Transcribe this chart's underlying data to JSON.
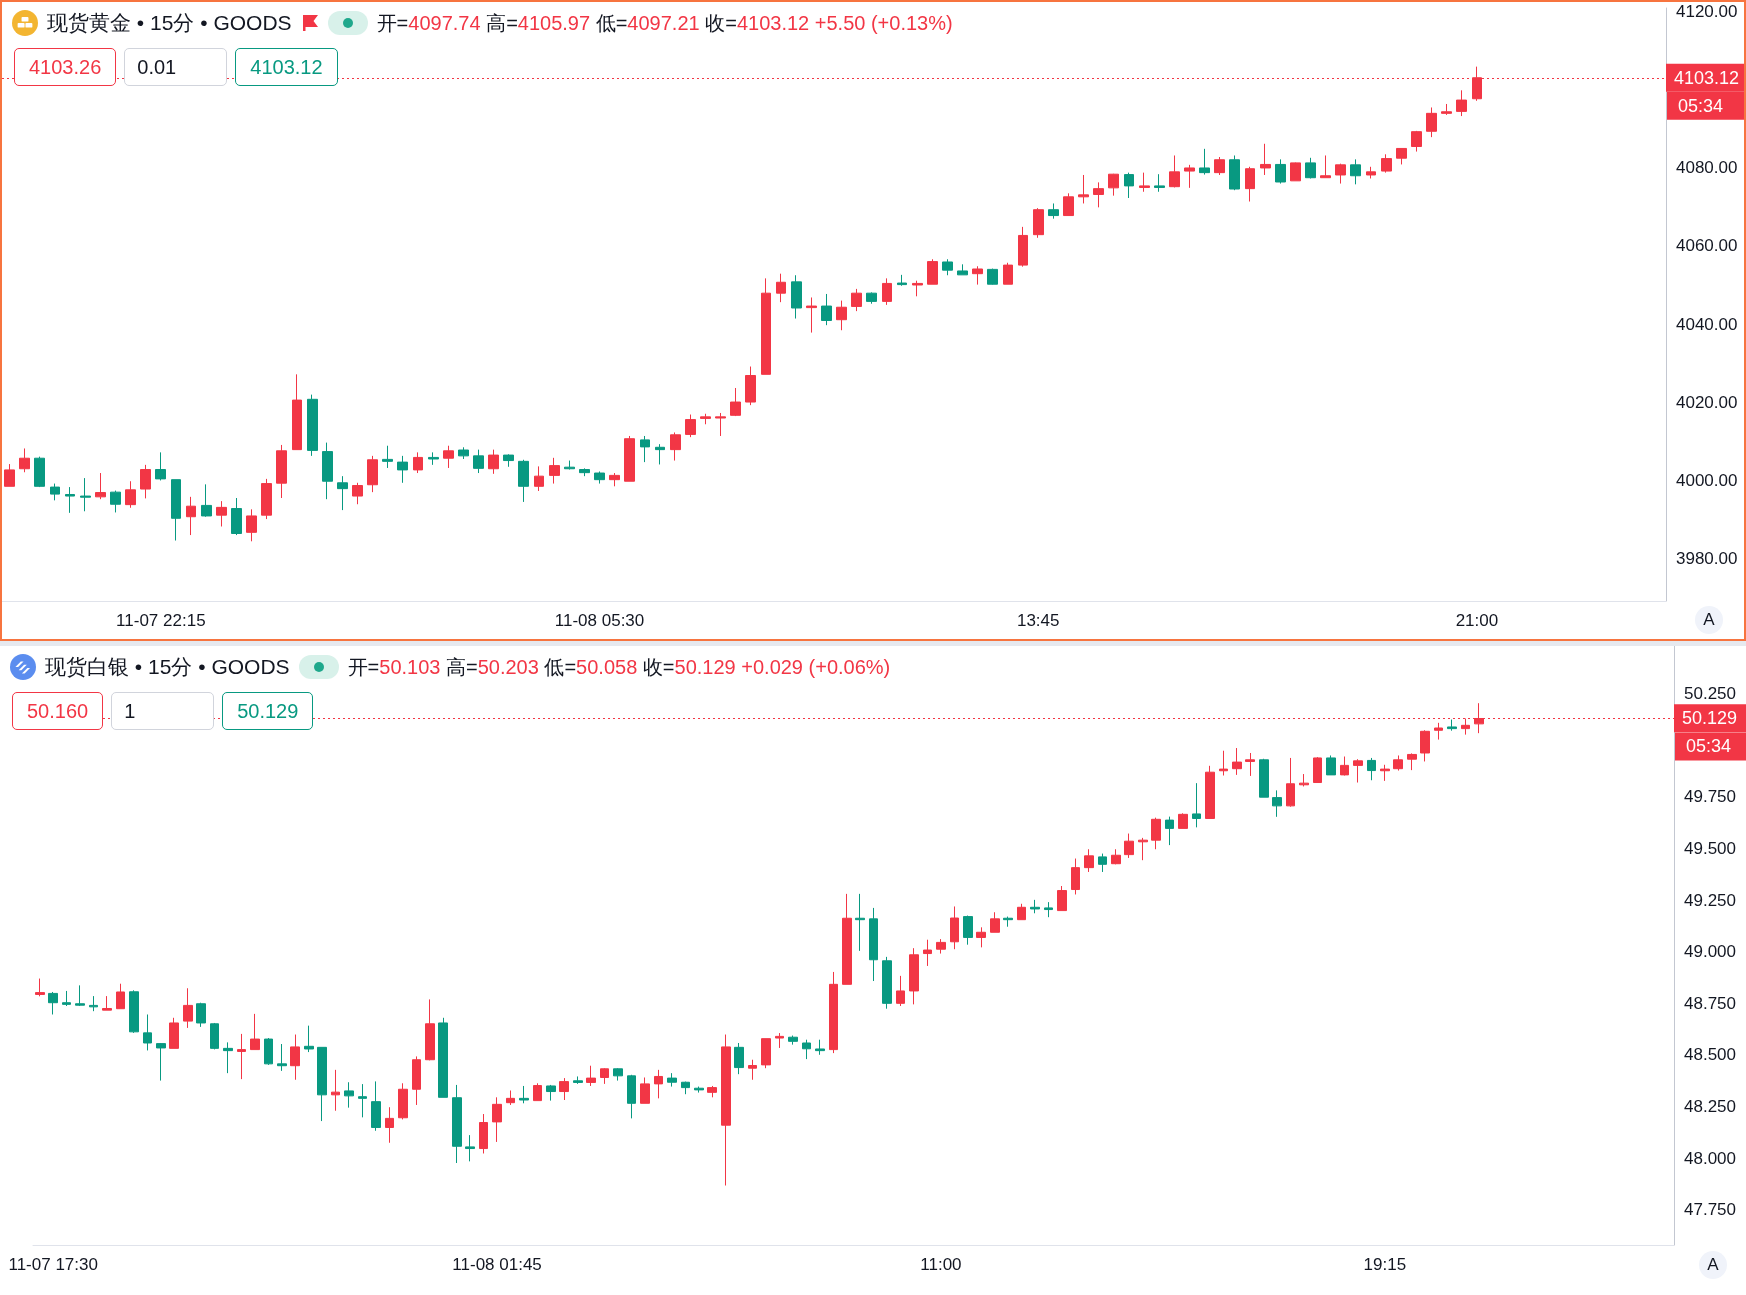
{
  "chart_data": [
    {
      "type": "candlestick",
      "title": "现货黄金 • 15分 • GOODS",
      "subtitle": "开=4097.74 高=4105.97 低=4097.21 收=4103.12 +5.50 (+0.13%)",
      "categories": [
        null,
        null,
        null,
        null,
        null,
        null,
        null,
        null,
        null,
        null,
        "11-07 22:15",
        null,
        null,
        null,
        null,
        null,
        null,
        null,
        null,
        null,
        null,
        null,
        null,
        null,
        null,
        null,
        null,
        null,
        null,
        null,
        null,
        null,
        null,
        null,
        null,
        null,
        null,
        null,
        null,
        "11-08 05:30",
        null,
        null,
        null,
        null,
        null,
        null,
        null,
        null,
        null,
        null,
        null,
        null,
        null,
        null,
        null,
        null,
        null,
        null,
        null,
        null,
        null,
        null,
        null,
        null,
        null,
        null,
        null,
        null,
        "13:45",
        null,
        null,
        null,
        null,
        null,
        null,
        null,
        null,
        null,
        null,
        null,
        null,
        null,
        null,
        null,
        null,
        null,
        null,
        null,
        null,
        null,
        null,
        null,
        null,
        null,
        null,
        null,
        null,
        "21:00",
        null,
        null,
        null,
        null,
        null,
        null,
        null,
        null,
        null,
        null,
        null,
        null
      ],
      "ohlc": [
        [
          3998.4,
          4004.1,
          3998.4,
          4002.6
        ],
        [
          4002.9,
          4008.1,
          4002.0,
          4005.6
        ],
        [
          4005.6,
          4006.0,
          3998.2,
          3998.4
        ],
        [
          3998.2,
          3999.1,
          3994.8,
          3996.4
        ],
        [
          3996.3,
          3998.2,
          3991.6,
          3995.9
        ],
        [
          3995.9,
          4000.5,
          3992.0,
          3995.6
        ],
        [
          3995.7,
          4001.8,
          3995.1,
          3996.8
        ],
        [
          3996.9,
          3997.3,
          3991.7,
          3993.8
        ],
        [
          3993.7,
          3999.7,
          3992.9,
          3997.5
        ],
        [
          3997.7,
          4003.9,
          3995.3,
          4002.7
        ],
        [
          4002.7,
          4007.1,
          3999.9,
          4000.3
        ],
        [
          4000.1,
          4000.1,
          3984.5,
          3990.2
        ],
        [
          3990.6,
          3995.7,
          3985.9,
          3993.3
        ],
        [
          3993.5,
          3998.9,
          3990.6,
          3990.8
        ],
        [
          3991.0,
          3994.6,
          3988.1,
          3993.0
        ],
        [
          3992.7,
          3995.4,
          3985.9,
          3986.3
        ],
        [
          3986.6,
          3992.5,
          3984.3,
          3990.8
        ],
        [
          3991.0,
          4000.3,
          3990.0,
          3999.1
        ],
        [
          3999.2,
          4009.0,
          3995.4,
          4007.5
        ],
        [
          4007.8,
          4027.1,
          4007.8,
          4020.5
        ],
        [
          4020.7,
          4021.9,
          4006.2,
          4007.6
        ],
        [
          4007.3,
          4009.6,
          3995.1,
          3999.7
        ],
        [
          3999.3,
          4001.0,
          3992.3,
          3997.8
        ],
        [
          3995.9,
          3999.3,
          3993.8,
          3998.6
        ],
        [
          3998.8,
          4006.2,
          3996.9,
          4005.2
        ],
        [
          4005.3,
          4008.8,
          4003.1,
          4004.8
        ],
        [
          4004.6,
          4006.2,
          3999.3,
          4002.6
        ],
        [
          4002.6,
          4007.1,
          4001.8,
          4005.8
        ],
        [
          4005.8,
          4007.1,
          4003.9,
          4005.4
        ],
        [
          4005.6,
          4008.8,
          4003.1,
          4007.5
        ],
        [
          4007.7,
          4008.4,
          4005.4,
          4006.2
        ],
        [
          4006.2,
          4007.8,
          4001.8,
          4003.0
        ],
        [
          4002.9,
          4007.8,
          4001.6,
          4006.4
        ],
        [
          4006.4,
          4006.6,
          4003.4,
          4005.0
        ],
        [
          4004.8,
          4005.2,
          3994.4,
          3998.4
        ],
        [
          3998.4,
          4003.5,
          3997.2,
          4001.0
        ],
        [
          4001.2,
          4005.7,
          3999.1,
          4003.7
        ],
        [
          4003.3,
          4005.0,
          4002.7,
          4002.9
        ],
        [
          4002.7,
          4003.0,
          4001.0,
          4001.9
        ],
        [
          4001.8,
          4002.2,
          3999.1,
          4000.1
        ],
        [
          4000.1,
          4001.8,
          3998.4,
          4001.2
        ],
        [
          3999.7,
          4011.3,
          3999.7,
          4010.6
        ],
        [
          4010.3,
          4011.3,
          4004.6,
          4008.5
        ],
        [
          4008.4,
          4009.2,
          4004.0,
          4007.8
        ],
        [
          4007.8,
          4012.2,
          4005.0,
          4011.6
        ],
        [
          4011.7,
          4016.8,
          4011.0,
          4015.5
        ],
        [
          4015.8,
          4017.0,
          4014.3,
          4016.2
        ],
        [
          4015.9,
          4017.2,
          4011.3,
          4016.2
        ],
        [
          4016.6,
          4023.6,
          4016.4,
          4020.0
        ],
        [
          4020.0,
          4029.1,
          4019.2,
          4026.8
        ],
        [
          4027.1,
          4051.7,
          4027.1,
          4047.9
        ],
        [
          4047.9,
          4052.9,
          4045.6,
          4050.7
        ],
        [
          4050.8,
          4052.5,
          4041.4,
          4044.1
        ],
        [
          4044.2,
          4046.8,
          4037.8,
          4044.6
        ],
        [
          4044.6,
          4047.7,
          4039.7,
          4040.9
        ],
        [
          4041.1,
          4046.0,
          4038.4,
          4044.3
        ],
        [
          4044.5,
          4049.0,
          4043.3,
          4047.9
        ],
        [
          4047.9,
          4048.1,
          4045.2,
          4045.8
        ],
        [
          4045.8,
          4051.7,
          4044.9,
          4050.4
        ],
        [
          4050.5,
          4052.6,
          4049.8,
          4050.1
        ],
        [
          4050.0,
          4051.1,
          4047.1,
          4050.4
        ],
        [
          4050.2,
          4056.6,
          4050.2,
          4056.0
        ],
        [
          4055.9,
          4056.6,
          4052.5,
          4053.8
        ],
        [
          4053.6,
          4055.3,
          4052.6,
          4052.6
        ],
        [
          4052.9,
          4054.8,
          4050.1,
          4054.1
        ],
        [
          4054.0,
          4054.2,
          4050.1,
          4050.2
        ],
        [
          4050.2,
          4055.7,
          4050.2,
          4055.1
        ],
        [
          4055.1,
          4064.9,
          4054.7,
          4062.7
        ],
        [
          4062.9,
          4069.7,
          4062.1,
          4069.3
        ],
        [
          4069.3,
          4070.9,
          4067.0,
          4067.8
        ],
        [
          4067.8,
          4073.5,
          4067.8,
          4072.6
        ],
        [
          4072.6,
          4078.2,
          4070.9,
          4073.1
        ],
        [
          4073.2,
          4076.3,
          4069.9,
          4074.7
        ],
        [
          4074.9,
          4078.5,
          4072.9,
          4078.4
        ],
        [
          4078.3,
          4078.8,
          4072.3,
          4075.4
        ],
        [
          4075.0,
          4078.8,
          4073.9,
          4075.4
        ],
        [
          4075.4,
          4078.4,
          4073.9,
          4075.0
        ],
        [
          4075.2,
          4083.2,
          4075.0,
          4079.0
        ],
        [
          4079.2,
          4080.8,
          4074.9,
          4080.0
        ],
        [
          4080.0,
          4084.9,
          4078.3,
          4078.8
        ],
        [
          4078.8,
          4082.8,
          4078.2,
          4082.1
        ],
        [
          4082.1,
          4083.2,
          4074.3,
          4074.6
        ],
        [
          4074.7,
          4080.3,
          4071.4,
          4079.8
        ],
        [
          4080.0,
          4086.2,
          4078.2,
          4080.9
        ],
        [
          4080.9,
          4082.2,
          4076.0,
          4076.4
        ],
        [
          4076.7,
          4081.4,
          4076.7,
          4081.3
        ],
        [
          4081.3,
          4082.6,
          4077.3,
          4077.5
        ],
        [
          4077.5,
          4083.2,
          4077.5,
          4078.0
        ],
        [
          4078.2,
          4081.1,
          4076.0,
          4080.8
        ],
        [
          4080.8,
          4082.2,
          4075.8,
          4078.0
        ],
        [
          4078.2,
          4080.3,
          4077.3,
          4079.0
        ],
        [
          4079.2,
          4083.5,
          4078.8,
          4082.4
        ],
        [
          4082.5,
          4085.0,
          4080.9,
          4085.0
        ],
        [
          4085.5,
          4089.5,
          4084.2,
          4089.3
        ],
        [
          4089.4,
          4095.5,
          4087.9,
          4094.0
        ],
        [
          4094.0,
          4096.4,
          4093.6,
          4094.4
        ],
        [
          4094.5,
          4099.9,
          4093.3,
          4097.4
        ],
        [
          4097.74,
          4105.97,
          4097.21,
          4103.12
        ],
        null,
        null,
        null,
        null,
        null,
        null,
        null,
        null,
        null,
        null,
        null,
        null
      ],
      "colors": [
        "#f23645",
        "#f23645",
        "#089981",
        "#089981",
        "#089981",
        "#089981",
        "#f23645",
        "#089981",
        "#f23645",
        "#f23645",
        "#089981",
        "#089981",
        "#f23645",
        "#089981",
        "#f23645",
        "#089981",
        "#f23645",
        "#f23645",
        "#f23645",
        "#f23645",
        "#089981",
        "#089981",
        "#089981",
        "#f23645",
        "#f23645",
        "#089981",
        "#089981",
        "#f23645",
        "#089981",
        "#f23645",
        "#089981",
        "#089981",
        "#f23645",
        "#089981",
        "#089981",
        "#f23645",
        "#f23645",
        "#089981",
        "#089981",
        "#089981",
        "#f23645",
        "#f23645",
        "#089981",
        "#089981",
        "#f23645",
        "#f23645",
        "#f23645",
        "#f23645",
        "#f23645",
        "#f23645",
        "#f23645",
        "#f23645",
        "#089981",
        "#f23645",
        "#089981",
        "#f23645",
        "#f23645",
        "#089981",
        "#f23645",
        "#089981",
        "#f23645",
        "#f23645",
        "#089981",
        "#089981",
        "#f23645",
        "#089981",
        "#f23645",
        "#f23645",
        "#f23645",
        "#089981",
        "#f23645",
        "#f23645",
        "#f23645",
        "#f23645",
        "#089981",
        "#f23645",
        "#089981",
        "#f23645",
        "#f23645",
        "#089981",
        "#f23645",
        "#089981",
        "#f23645",
        "#f23645",
        "#089981",
        "#f23645",
        "#089981",
        "#f23645",
        "#f23645",
        "#089981",
        "#f23645",
        "#f23645",
        "#f23645",
        "#f23645",
        "#f23645",
        "#f23645",
        "#f23645",
        "#f23645",
        null,
        null,
        null,
        null,
        null,
        null,
        null,
        null,
        null,
        null,
        null,
        null
      ],
      "ylim": [
        3969,
        4121
      ],
      "yticks": [
        {
          "value": 3980,
          "label": "3980.00"
        },
        {
          "value": 4000,
          "label": "4000.00"
        },
        {
          "value": 4020,
          "label": "4020.00"
        },
        {
          "value": 4040,
          "label": "4040.00"
        },
        {
          "value": 4060,
          "label": "4060.00"
        },
        {
          "value": 4080,
          "label": "4080.00"
        },
        {
          "value": 4120,
          "label": "4120.00"
        }
      ],
      "ref_lines": [
        {
          "axis": "y",
          "value": 4103.12,
          "label": "4103.12",
          "color": "#f23645",
          "line_style": "dotted"
        }
      ],
      "annotations": [
        "4103.26",
        "0.01",
        "4103.12",
        "05:34",
        "A"
      ]
    },
    {
      "type": "candlestick",
      "title": "现货白银 • 15分 • GOODS",
      "subtitle": "开=50.103 高=50.203 低=50.058 收=50.129 +0.029 (+0.06%)",
      "categories": [
        null,
        "11-07 17:30",
        null,
        null,
        null,
        null,
        null,
        null,
        null,
        null,
        null,
        null,
        null,
        null,
        null,
        null,
        null,
        null,
        null,
        null,
        null,
        null,
        null,
        null,
        null,
        null,
        null,
        null,
        null,
        null,
        null,
        null,
        null,
        null,
        "11-08 01:45",
        null,
        null,
        null,
        null,
        null,
        null,
        null,
        null,
        null,
        null,
        null,
        null,
        null,
        null,
        null,
        null,
        null,
        null,
        null,
        null,
        null,
        null,
        null,
        null,
        null,
        null,
        null,
        null,
        null,
        null,
        null,
        null,
        "11:00",
        null,
        null,
        null,
        null,
        null,
        null,
        null,
        null,
        null,
        null,
        null,
        null,
        null,
        null,
        null,
        null,
        null,
        null,
        null,
        null,
        null,
        null,
        null,
        null,
        null,
        null,
        null,
        null,
        null,
        null,
        null,
        null,
        "19:15",
        null,
        null,
        null,
        null,
        null,
        null,
        null,
        null,
        null,
        null,
        null,
        null,
        null,
        null,
        null,
        null,
        null,
        null,
        null,
        null,
        null
      ],
      "ohlc": [
        [
          48.793,
          48.87,
          48.784,
          48.802
        ],
        [
          48.798,
          48.805,
          48.696,
          48.753
        ],
        [
          48.753,
          48.81,
          48.737,
          48.745
        ],
        [
          48.748,
          48.837,
          48.737,
          48.741
        ],
        [
          48.74,
          48.785,
          48.712,
          48.733
        ],
        [
          48.717,
          48.785,
          48.717,
          48.725
        ],
        [
          48.724,
          48.845,
          48.724,
          48.805
        ],
        [
          48.806,
          48.813,
          48.607,
          48.612
        ],
        [
          48.607,
          48.696,
          48.522,
          48.558
        ],
        [
          48.555,
          48.558,
          48.376,
          48.534
        ],
        [
          48.532,
          48.68,
          48.532,
          48.655
        ],
        [
          48.664,
          48.823,
          48.631,
          48.74
        ],
        [
          48.748,
          48.753,
          48.636,
          48.655
        ],
        [
          48.651,
          48.655,
          48.527,
          48.532
        ],
        [
          48.532,
          48.561,
          48.412,
          48.521
        ],
        [
          48.517,
          48.602,
          48.383,
          48.526
        ],
        [
          48.526,
          48.699,
          48.526,
          48.577
        ],
        [
          48.577,
          48.582,
          48.452,
          48.457
        ],
        [
          48.457,
          48.553,
          48.423,
          48.448
        ],
        [
          48.448,
          48.599,
          48.38,
          48.539
        ],
        [
          48.542,
          48.642,
          48.514,
          48.529
        ],
        [
          48.537,
          48.537,
          48.18,
          48.307
        ],
        [
          48.307,
          48.428,
          48.23,
          48.32
        ],
        [
          48.326,
          48.368,
          48.245,
          48.302
        ],
        [
          48.298,
          48.359,
          48.198,
          48.29
        ],
        [
          48.274,
          48.372,
          48.133,
          48.149
        ],
        [
          48.149,
          48.247,
          48.075,
          48.193
        ],
        [
          48.196,
          48.363,
          48.188,
          48.334
        ],
        [
          48.334,
          48.493,
          48.258,
          48.477
        ],
        [
          48.477,
          48.769,
          48.474,
          48.651
        ],
        [
          48.655,
          48.68,
          48.295,
          48.295
        ],
        [
          48.293,
          48.355,
          47.977,
          48.058
        ],
        [
          48.055,
          48.112,
          47.985,
          48.047
        ],
        [
          48.047,
          48.214,
          48.023,
          48.173
        ],
        [
          48.176,
          48.295,
          48.079,
          48.261
        ],
        [
          48.269,
          48.328,
          48.258,
          48.29
        ],
        [
          48.29,
          48.35,
          48.266,
          48.282
        ],
        [
          48.279,
          48.363,
          48.279,
          48.352
        ],
        [
          48.35,
          48.355,
          48.279,
          48.323
        ],
        [
          48.323,
          48.388,
          48.282,
          48.371
        ],
        [
          48.375,
          48.396,
          48.36,
          48.367
        ],
        [
          48.367,
          48.448,
          48.35,
          48.388
        ],
        [
          48.391,
          48.436,
          48.36,
          48.433
        ],
        [
          48.433,
          48.436,
          48.376,
          48.399
        ],
        [
          48.399,
          48.404,
          48.193,
          48.266
        ],
        [
          48.266,
          48.391,
          48.266,
          48.36
        ],
        [
          48.36,
          48.428,
          48.29,
          48.396
        ],
        [
          48.388,
          48.412,
          48.347,
          48.368
        ],
        [
          48.368,
          48.371,
          48.31,
          48.342
        ],
        [
          48.339,
          48.347,
          48.318,
          48.331
        ],
        [
          48.319,
          48.35,
          48.295,
          48.342
        ],
        [
          48.16,
          48.599,
          47.868,
          48.539
        ],
        [
          48.537,
          48.558,
          48.407,
          48.439
        ],
        [
          48.436,
          48.477,
          48.38,
          48.449
        ],
        [
          48.452,
          48.579,
          48.436,
          48.579
        ],
        [
          48.582,
          48.606,
          48.534,
          48.59
        ],
        [
          48.586,
          48.594,
          48.55,
          48.566
        ],
        [
          48.558,
          48.574,
          48.48,
          48.53
        ],
        [
          48.529,
          48.574,
          48.501,
          48.521
        ],
        [
          48.526,
          48.902,
          48.509,
          48.842
        ],
        [
          48.842,
          49.28,
          48.842,
          49.162
        ],
        [
          49.162,
          49.28,
          49.004,
          49.155
        ],
        [
          49.159,
          49.212,
          48.858,
          48.961
        ],
        [
          48.956,
          48.975,
          48.724,
          48.75
        ],
        [
          48.75,
          48.883,
          48.737,
          48.81
        ],
        [
          48.81,
          49.017,
          48.745,
          48.985
        ],
        [
          48.991,
          49.058,
          48.931,
          49.008
        ],
        [
          49.012,
          49.061,
          48.991,
          49.045
        ],
        [
          49.048,
          49.219,
          49.012,
          49.163
        ],
        [
          49.17,
          49.175,
          49.034,
          49.069
        ],
        [
          49.069,
          49.118,
          49.021,
          49.094
        ],
        [
          49.094,
          49.191,
          49.094,
          49.159
        ],
        [
          49.162,
          49.17,
          49.121,
          49.155
        ],
        [
          49.155,
          49.232,
          49.155,
          49.215
        ],
        [
          49.215,
          49.251,
          49.186,
          49.207
        ],
        [
          49.212,
          49.24,
          49.167,
          49.204
        ],
        [
          49.199,
          49.318,
          49.199,
          49.296
        ],
        [
          49.301,
          49.451,
          49.277,
          49.407
        ],
        [
          49.407,
          49.496,
          49.386,
          49.464
        ],
        [
          49.459,
          49.475,
          49.386,
          49.423
        ],
        [
          49.426,
          49.496,
          49.423,
          49.467
        ],
        [
          49.47,
          49.572,
          49.454,
          49.535
        ],
        [
          49.532,
          49.551,
          49.443,
          49.54
        ],
        [
          49.54,
          49.649,
          49.496,
          49.641
        ],
        [
          49.637,
          49.654,
          49.516,
          49.597
        ],
        [
          49.597,
          49.67,
          49.597,
          49.665
        ],
        [
          49.667,
          49.816,
          49.602,
          49.645
        ],
        [
          49.645,
          49.9,
          49.645,
          49.869
        ],
        [
          49.876,
          49.973,
          49.853,
          49.884
        ],
        [
          49.886,
          49.986,
          49.856,
          49.918
        ],
        [
          49.921,
          49.962,
          49.851,
          49.929
        ],
        [
          49.929,
          49.934,
          49.748,
          49.748
        ],
        [
          49.746,
          49.781,
          49.653,
          49.706
        ],
        [
          49.706,
          49.938,
          49.702,
          49.813
        ],
        [
          49.808,
          49.86,
          49.8,
          49.816
        ],
        [
          49.819,
          49.942,
          49.819,
          49.938
        ],
        [
          49.938,
          49.95,
          49.856,
          49.856
        ],
        [
          49.856,
          49.945,
          49.853,
          49.902
        ],
        [
          49.902,
          49.932,
          49.819,
          49.924
        ],
        [
          49.926,
          49.938,
          49.83,
          49.877
        ],
        [
          49.876,
          49.905,
          49.827,
          49.884
        ],
        [
          49.886,
          49.95,
          49.877,
          49.929
        ],
        [
          49.932,
          49.96,
          49.879,
          49.955
        ],
        [
          49.962,
          50.072,
          49.921,
          50.067
        ],
        [
          50.072,
          50.108,
          50.027,
          50.083
        ],
        [
          50.088,
          50.124,
          50.07,
          50.08
        ],
        [
          50.08,
          50.129,
          50.051,
          50.096
        ],
        [
          50.103,
          50.203,
          50.058,
          50.129
        ],
        null,
        null,
        null,
        null,
        null,
        null,
        null,
        null,
        null,
        null,
        null,
        null,
        null,
        null
      ],
      "colors": [
        "#f23645",
        "#089981",
        "#089981",
        "#089981",
        "#089981",
        "#f23645",
        "#f23645",
        "#089981",
        "#089981",
        "#089981",
        "#f23645",
        "#f23645",
        "#089981",
        "#089981",
        "#089981",
        "#f23645",
        "#f23645",
        "#089981",
        "#089981",
        "#f23645",
        "#089981",
        "#089981",
        "#f23645",
        "#089981",
        "#089981",
        "#089981",
        "#f23645",
        "#f23645",
        "#f23645",
        "#f23645",
        "#089981",
        "#089981",
        "#089981",
        "#f23645",
        "#f23645",
        "#f23645",
        "#089981",
        "#f23645",
        "#089981",
        "#f23645",
        "#089981",
        "#f23645",
        "#f23645",
        "#089981",
        "#089981",
        "#f23645",
        "#f23645",
        "#089981",
        "#089981",
        "#089981",
        "#f23645",
        "#f23645",
        "#089981",
        "#f23645",
        "#f23645",
        "#f23645",
        "#089981",
        "#089981",
        "#089981",
        "#f23645",
        "#f23645",
        "#089981",
        "#089981",
        "#089981",
        "#f23645",
        "#f23645",
        "#f23645",
        "#f23645",
        "#f23645",
        "#089981",
        "#f23645",
        "#f23645",
        "#089981",
        "#f23645",
        "#089981",
        "#089981",
        "#f23645",
        "#f23645",
        "#f23645",
        "#089981",
        "#f23645",
        "#f23645",
        "#f23645",
        "#f23645",
        "#089981",
        "#f23645",
        "#089981",
        "#f23645",
        "#f23645",
        "#f23645",
        "#f23645",
        "#089981",
        "#089981",
        "#f23645",
        "#f23645",
        "#f23645",
        "#089981",
        "#f23645",
        "#f23645",
        "#089981",
        "#f23645",
        "#f23645",
        "#f23645",
        "#f23645",
        "#f23645",
        "#089981",
        "#f23645",
        "#f23645",
        null,
        null,
        null,
        null,
        null,
        null,
        null,
        null,
        null,
        null,
        null,
        null,
        null,
        null
      ],
      "ylim": [
        47.58,
        50.48
      ],
      "yticks": [
        {
          "value": 47.75,
          "label": "47.750"
        },
        {
          "value": 48.0,
          "label": "48.000"
        },
        {
          "value": 48.25,
          "label": "48.250"
        },
        {
          "value": 48.5,
          "label": "48.500"
        },
        {
          "value": 48.75,
          "label": "48.750"
        },
        {
          "value": 49.0,
          "label": "49.000"
        },
        {
          "value": 49.25,
          "label": "49.250"
        },
        {
          "value": 49.5,
          "label": "49.500"
        },
        {
          "value": 49.75,
          "label": "49.750"
        },
        {
          "value": 50.25,
          "label": "50.250"
        }
      ],
      "ref_lines": [
        {
          "axis": "y",
          "value": 50.129,
          "label": "50.129",
          "color": "#f23645",
          "line_style": "dotted"
        }
      ],
      "annotations": [
        "50.160",
        "1",
        "50.129",
        "05:34",
        "A"
      ]
    }
  ]
}
